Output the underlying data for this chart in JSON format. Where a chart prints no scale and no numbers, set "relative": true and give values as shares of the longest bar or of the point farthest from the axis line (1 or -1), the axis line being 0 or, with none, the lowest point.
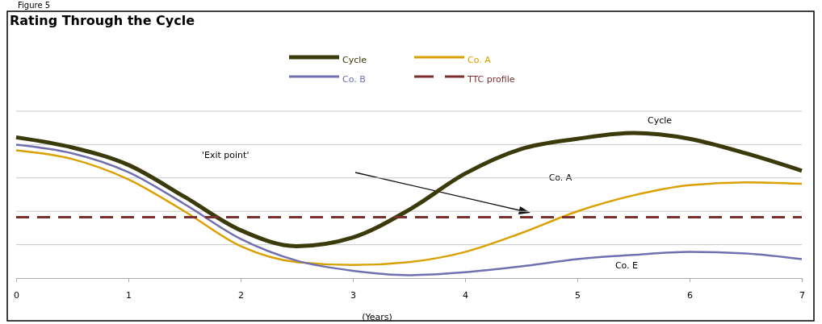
{
  "chart_data": {
    "type": "line",
    "title": "Rating Through the Cycle",
    "xlabel": "(Years)",
    "relative": true,
    "grid": "y",
    "legend": "top",
    "xlim": [
      0,
      7
    ],
    "xticks": [
      0,
      1,
      2,
      3,
      4,
      5,
      6,
      7
    ],
    "series": [
      {
        "name": "Cycle",
        "color": "#3a3a0a",
        "x": [
          0,
          0.5,
          1,
          1.5,
          2,
          2.5,
          3,
          3.5,
          4,
          4.5,
          5,
          5.5,
          6,
          6.5,
          7
        ],
        "values": [
          0.97,
          0.9,
          0.78,
          0.56,
          0.33,
          0.22,
          0.28,
          0.47,
          0.72,
          0.89,
          0.96,
          1.0,
          0.96,
          0.86,
          0.74
        ]
      },
      {
        "name": "Co. A",
        "color": "#d9a000",
        "x": [
          0,
          0.5,
          1,
          1.5,
          2,
          2.5,
          3,
          3.5,
          4,
          4.5,
          5,
          5.5,
          6,
          6.5,
          7
        ],
        "values": [
          0.88,
          0.82,
          0.68,
          0.46,
          0.22,
          0.11,
          0.09,
          0.11,
          0.18,
          0.31,
          0.46,
          0.57,
          0.64,
          0.66,
          0.65
        ]
      },
      {
        "name": "Co. B",
        "color": "#7070b0",
        "x": [
          0,
          0.5,
          1,
          1.5,
          2,
          2.5,
          3,
          3.5,
          4,
          4.5,
          5,
          5.5,
          6,
          6.5,
          7
        ],
        "values": [
          0.92,
          0.86,
          0.73,
          0.51,
          0.27,
          0.12,
          0.05,
          0.02,
          0.04,
          0.08,
          0.13,
          0.16,
          0.18,
          0.17,
          0.13
        ]
      },
      {
        "name": "TTC profile",
        "color": "#7a2e2e",
        "line_style": "dashed",
        "x": [
          0,
          7
        ],
        "values": [
          0.42,
          0.42
        ]
      }
    ],
    "annotations": [
      "Figure 5",
      "'Exit point'",
      "Cycle",
      "Co. A",
      "Co. E"
    ]
  }
}
